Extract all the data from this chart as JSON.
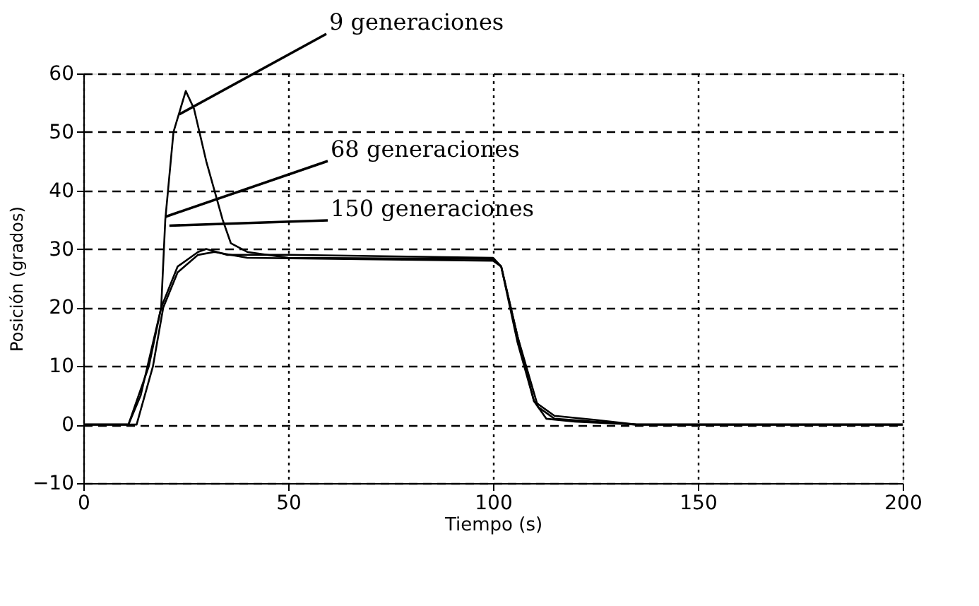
{
  "chart_data": {
    "type": "line",
    "xlabel": "Tiempo (s)",
    "ylabel": "Posición (grados)",
    "xlim": [
      0,
      200
    ],
    "ylim": [
      -10,
      60
    ],
    "xticks": [
      0,
      50,
      100,
      150,
      200
    ],
    "yticks": [
      -10,
      0,
      10,
      20,
      30,
      40,
      50,
      60
    ],
    "grid": true,
    "marker": "none",
    "line_style": "solid",
    "series": [
      {
        "color": "#000000",
        "x": [
          0,
          11,
          16,
          19,
          20,
          22,
          25,
          27,
          30,
          34,
          36,
          40,
          50,
          100,
          102,
          106,
          110,
          113,
          120,
          135,
          200
        ],
        "values": [
          0,
          0,
          10,
          20,
          35,
          50,
          57,
          54,
          45,
          35,
          31,
          29.5,
          28.5,
          28.3,
          27,
          15,
          4,
          1,
          0.5,
          0,
          0
        ]
      },
      {
        "color": "#000000",
        "x": [
          0,
          11,
          14,
          19,
          23,
          28,
          30,
          35,
          50,
          100,
          102,
          106,
          110,
          115,
          125,
          135,
          200
        ],
        "values": [
          0,
          0,
          5,
          20,
          27,
          29.5,
          30,
          29,
          29,
          28.5,
          27,
          14,
          4,
          1.5,
          0.8,
          0,
          0
        ]
      },
      {
        "color": "#000000",
        "x": [
          0,
          13,
          17,
          19.5,
          23,
          28,
          32,
          40,
          100,
          102,
          106,
          111,
          115,
          125,
          135,
          200
        ],
        "values": [
          0,
          0,
          10,
          20,
          26,
          29,
          29.5,
          28.5,
          28,
          27,
          15,
          3,
          1,
          0.5,
          0,
          0
        ]
      }
    ],
    "annotations": [
      {
        "text": "9 generaciones",
        "x": 23.4,
        "y": 53
      },
      {
        "text": "68 generaciones",
        "x": 20,
        "y": 35.5
      },
      {
        "text": "150 generaciones",
        "x": 21,
        "y": 34
      }
    ]
  }
}
